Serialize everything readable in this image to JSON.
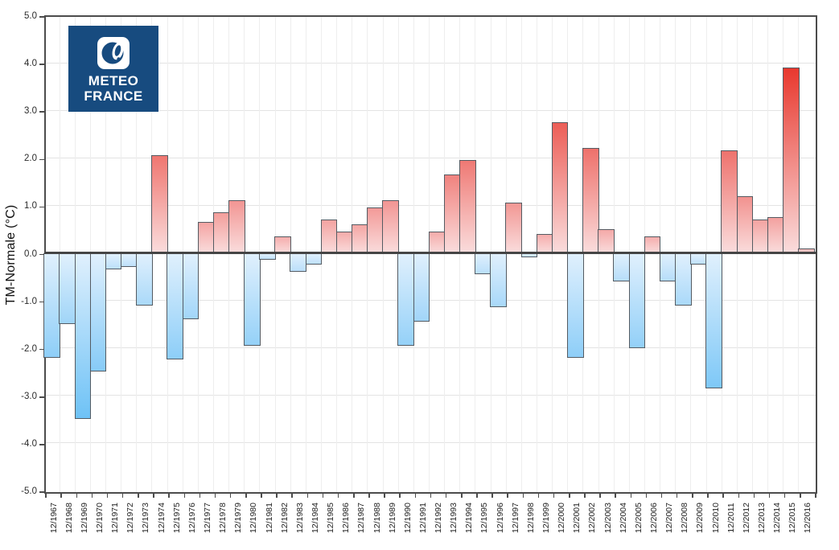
{
  "page": {
    "background": "#ffffff"
  },
  "logo": {
    "line1": "METEO",
    "line2": "FRANCE",
    "bg_color": "#174b7f"
  },
  "chart_data": {
    "type": "bar",
    "title": "",
    "xlabel": "",
    "ylabel": "TM-Normale (°C)",
    "ylim": [
      -5.0,
      5.0
    ],
    "ytick_step": 1.0,
    "ytick_labels": [
      "5.0",
      "4.0",
      "3.0",
      "2.0",
      "1.0",
      "0.0",
      "-1.0",
      "-2.0",
      "-3.0",
      "-4.0",
      "-5.0"
    ],
    "grid": true,
    "legend_position": "none",
    "categories": [
      "12/1967",
      "12/1968",
      "12/1969",
      "12/1970",
      "12/1971",
      "12/1972",
      "12/1973",
      "12/1974",
      "12/1975",
      "12/1976",
      "12/1977",
      "12/1978",
      "12/1979",
      "12/1980",
      "12/1981",
      "12/1982",
      "12/1983",
      "12/1984",
      "12/1985",
      "12/1986",
      "12/1987",
      "12/1988",
      "12/1989",
      "12/1990",
      "12/1991",
      "12/1992",
      "12/1993",
      "12/1994",
      "12/1995",
      "12/1996",
      "12/1997",
      "12/1998",
      "12/1999",
      "12/2000",
      "12/2001",
      "12/2002",
      "12/2003",
      "12/2004",
      "12/2005",
      "12/2006",
      "12/2007",
      "12/2008",
      "12/2009",
      "12/2010",
      "12/2011",
      "12/2012",
      "12/2013",
      "12/2014",
      "12/2015",
      "12/2016"
    ],
    "values": [
      -2.2,
      -1.5,
      -3.5,
      -2.5,
      -0.35,
      -0.3,
      -1.1,
      2.05,
      -2.25,
      -1.4,
      0.65,
      0.85,
      1.1,
      -1.95,
      -0.15,
      0.35,
      -0.4,
      -0.25,
      0.7,
      0.45,
      0.6,
      0.95,
      1.1,
      -1.95,
      -1.45,
      0.45,
      1.65,
      1.95,
      -0.45,
      -1.15,
      1.05,
      -0.1,
      0.4,
      2.75,
      -2.2,
      2.2,
      0.5,
      -0.6,
      -2.0,
      0.35,
      -0.6,
      -1.1,
      -0.25,
      -2.85,
      2.15,
      1.2,
      0.7,
      0.75,
      3.9,
      0.1
    ],
    "colors": {
      "positive_strong": "#e8382e",
      "positive_pale_far": "#f6baba",
      "positive_near_zero": "#fadddd",
      "negative_strong": "#64bef6",
      "negative_pale_far": "#c5e3fa",
      "negative_near_zero": "#e0f0fd",
      "bar_border": "#545b62",
      "axis": "#4c4c4c",
      "zero_line": "#454545",
      "hgrid": "#e3e3e3",
      "vgrid": "#eeeeee"
    }
  }
}
